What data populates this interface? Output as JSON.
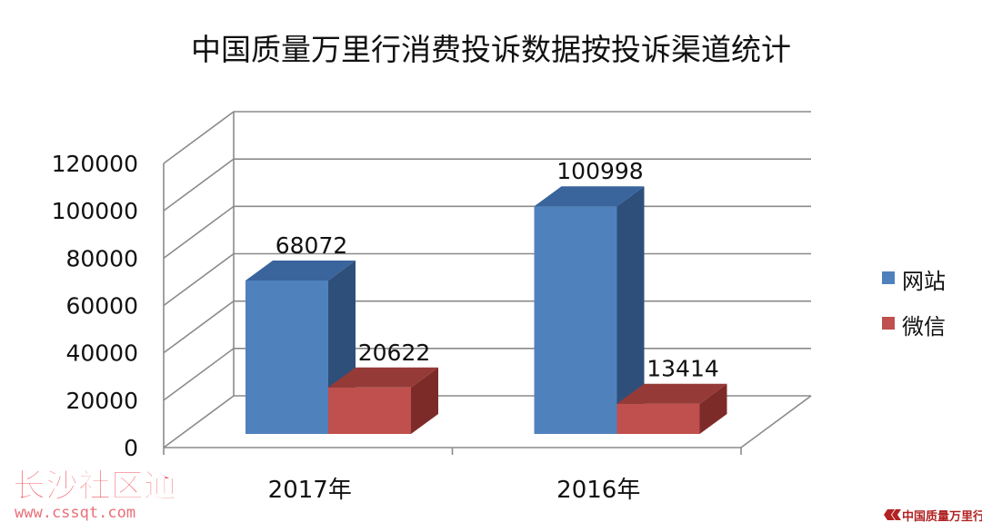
{
  "chart_data": {
    "type": "bar",
    "title": "中国质量万里行消费投诉数据按投诉渠道统计",
    "categories": [
      "2017年",
      "2016年"
    ],
    "series": [
      {
        "name": "网站",
        "values": [
          68072,
          100998
        ],
        "color": "#4F81BD",
        "side_color": "#2E4F7A",
        "top_color": "#3A649C"
      },
      {
        "name": "微信",
        "values": [
          20622,
          13414
        ],
        "color": "#C0504D",
        "side_color": "#7D2B29",
        "top_color": "#963A37"
      }
    ],
    "y_ticks": [
      "0",
      "20000",
      "40000",
      "60000",
      "80000",
      "100000",
      "120000"
    ],
    "ylim": [
      0,
      120000
    ],
    "data_labels": [
      "68072",
      "100998",
      "20622",
      "13414"
    ],
    "grid": true,
    "legend_position": "right",
    "style": "3d-clustered-column"
  },
  "watermark": {
    "site_name": "长沙社区通",
    "url": "www.cssqt.com",
    "brand": "中国质量万里行"
  }
}
